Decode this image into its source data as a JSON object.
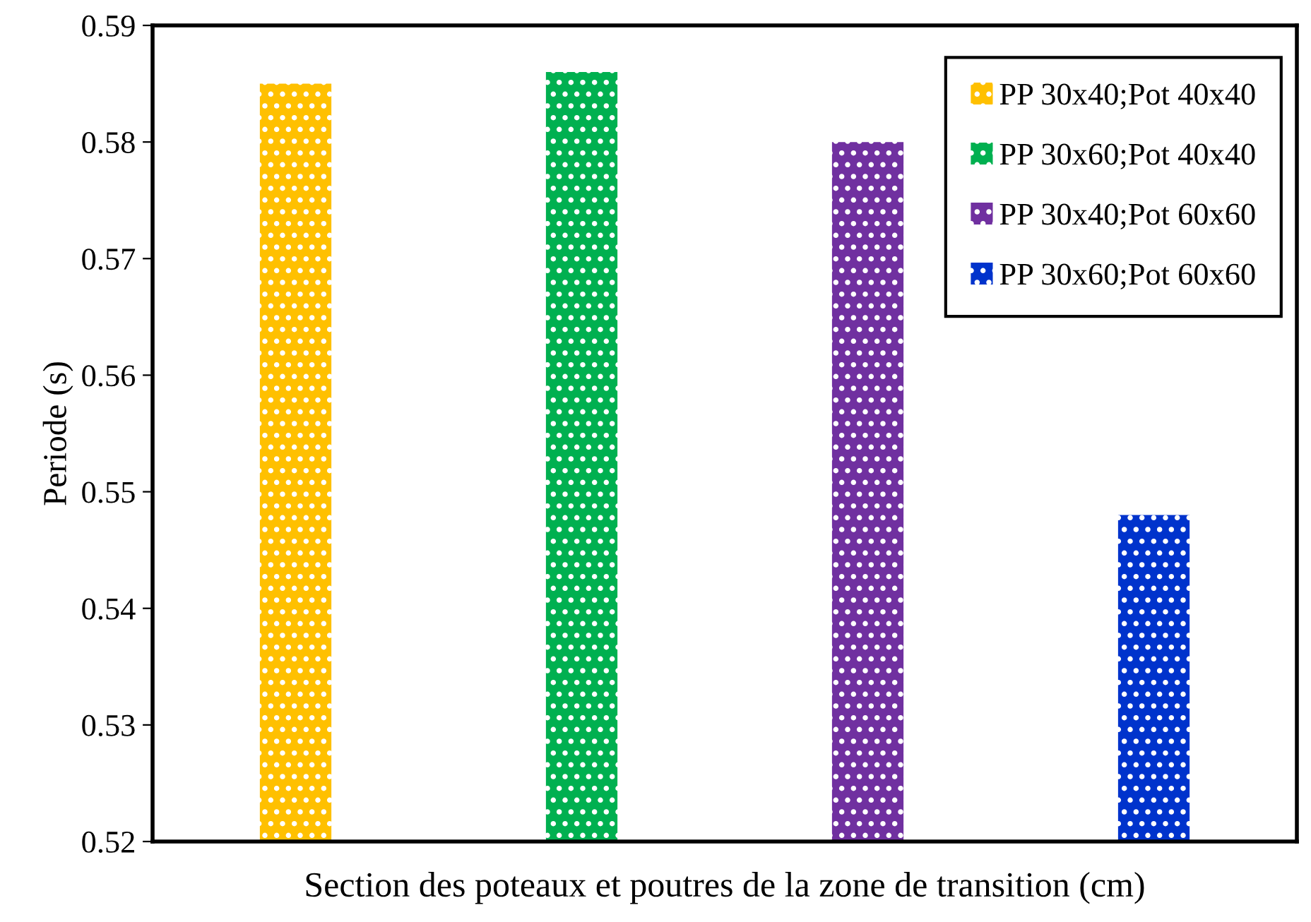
{
  "chart_data": {
    "type": "bar",
    "xlabel": "Section des poteaux et poutres de la zone de transition (cm)",
    "ylabel": "Periode (s)",
    "categories": [
      null
    ],
    "series": [
      {
        "name": "PP 30x40;Pot 40x40",
        "color": "#ffc000",
        "values": [
          0.585
        ]
      },
      {
        "name": "PP 30x60;Pot 40x40",
        "color": "#00b050",
        "values": [
          0.586
        ]
      },
      {
        "name": "PP 30x40;Pot 60x60",
        "color": "#7030a0",
        "values": [
          0.58
        ]
      },
      {
        "name": "PP 30x60;Pot 60x60",
        "color": "#0033cc",
        "values": [
          0.548
        ]
      }
    ],
    "ylim": [
      0.52,
      0.59
    ],
    "yticks": [
      0.52,
      0.53,
      0.54,
      0.55,
      0.56,
      0.57,
      0.58,
      0.59
    ],
    "grid": false,
    "legend": "top right"
  }
}
